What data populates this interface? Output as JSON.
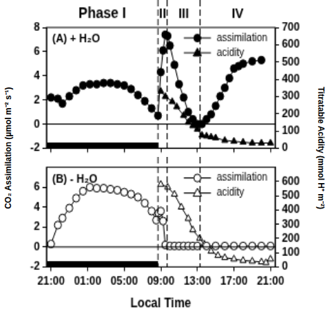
{
  "chart_data": [
    {
      "type": "line",
      "title": "(A) + H₂O",
      "ylabel": "CO₂ Assimilation (µmol m⁻² s⁻¹)",
      "y2label": "Titratable Acidity (mmol H⁺ m⁻²)",
      "phases": [
        {
          "label": "Phase I",
          "start": 20.5,
          "end": 32.7
        },
        {
          "label": "II",
          "start": 32.7,
          "end": 33.7
        },
        {
          "label": "III",
          "start": 33.7,
          "end": 37.3
        },
        {
          "label": "IV",
          "start": 37.3,
          "end": 45.5
        }
      ],
      "dark_period": [
        20.5,
        32.7
      ],
      "hline": 0,
      "xlim": [
        20.5,
        45.5
      ],
      "xticks": [
        {
          "value": 21,
          "label": "21:00"
        },
        {
          "value": 25,
          "label": "01:00"
        },
        {
          "value": 29,
          "label": "05:00"
        },
        {
          "value": 33,
          "label": "09:00"
        },
        {
          "value": 37,
          "label": "13:00"
        },
        {
          "value": 41,
          "label": "17:00"
        },
        {
          "value": 45,
          "label": "21:00"
        }
      ],
      "ylim": [
        -2,
        8
      ],
      "yticks": [
        -2,
        0,
        2,
        4,
        6,
        8
      ],
      "y2lim": [
        0,
        700
      ],
      "y2ticks": [
        0,
        100,
        200,
        300,
        400,
        500,
        600,
        700
      ],
      "grid": false,
      "legend": "upper right",
      "tick_labels": "y",
      "series": [
        {
          "name": "assimilation",
          "color": "#000000",
          "marker": "circle",
          "line_style": "solid",
          "x": [
            21.0,
            21.75,
            22.25,
            23.0,
            23.75,
            24.5,
            25.25,
            26.0,
            26.75,
            27.5,
            28.25,
            29.0,
            29.75,
            30.5,
            31.25,
            32.0,
            32.7,
            33.0,
            33.25,
            33.5,
            33.75,
            34.0,
            34.5,
            35.0,
            35.5,
            36.0,
            36.5,
            37.0,
            37.5,
            38.0,
            38.5,
            39.0,
            39.5,
            40.0,
            40.5,
            41.0,
            41.5,
            42.0,
            43.0,
            44.0
          ],
          "values": [
            2.2,
            2.1,
            1.7,
            2.3,
            2.8,
            3.2,
            3.3,
            3.3,
            3.4,
            3.4,
            3.3,
            3.2,
            2.9,
            2.4,
            1.9,
            1.3,
            0.7,
            4.3,
            6.1,
            7.4,
            7.3,
            6.5,
            4.9,
            3.3,
            2.2,
            1.0,
            0.4,
            0.0,
            0.0,
            0.4,
            0.8,
            1.5,
            2.3,
            3.0,
            3.8,
            4.6,
            4.8,
            5.0,
            5.2,
            5.3
          ]
        },
        {
          "name": "acidity",
          "color": "#000000",
          "marker": "triangle",
          "line_style": "solid",
          "axis": "y2",
          "x": [
            33.0,
            33.5,
            34.25,
            34.75,
            35.5,
            36.0,
            36.5,
            37.0,
            37.5,
            38.0,
            38.5,
            39.0,
            40.0,
            41.0,
            42.0,
            43.0,
            44.0,
            45.0
          ],
          "values": [
            330,
            300,
            270,
            240,
            190,
            150,
            130,
            110,
            75,
            70,
            65,
            60,
            45,
            40,
            35,
            30,
            30,
            30
          ]
        }
      ]
    },
    {
      "type": "line",
      "title": "(B) - H₂O",
      "xlabel": "Local Time",
      "dark_period": [
        20.5,
        32.7
      ],
      "hline": 0,
      "xlim": [
        20.5,
        45.5
      ],
      "xticks": [
        {
          "value": 21,
          "label": "21:00"
        },
        {
          "value": 25,
          "label": "01:00"
        },
        {
          "value": 29,
          "label": "05:00"
        },
        {
          "value": 33,
          "label": "09:00"
        },
        {
          "value": 37,
          "label": "13:00"
        },
        {
          "value": 41,
          "label": "17:00"
        },
        {
          "value": 45,
          "label": "21:00"
        }
      ],
      "ylim": [
        -2,
        8
      ],
      "yticks": [
        -2,
        0,
        2,
        4,
        6
      ],
      "y2lim": [
        0,
        700
      ],
      "y2ticks": [
        0,
        100,
        200,
        300,
        400,
        500,
        600
      ],
      "grid": false,
      "legend": "upper right",
      "series": [
        {
          "name": "assimilation",
          "color": "#000000",
          "marker": "open_circle",
          "line_style": "solid",
          "x": [
            21.0,
            21.75,
            22.25,
            23.0,
            23.75,
            24.5,
            25.25,
            26.0,
            26.75,
            27.5,
            28.25,
            29.0,
            29.75,
            30.5,
            31.25,
            32.0,
            32.5,
            32.75,
            33.0,
            33.25,
            33.5,
            34.0,
            34.5,
            35.0,
            35.5,
            36.0,
            36.5,
            37.0,
            38.0,
            39.0,
            40.0,
            41.0,
            42.0,
            43.0,
            44.0,
            45.0
          ],
          "values": [
            0.3,
            2.2,
            2.9,
            3.9,
            4.9,
            5.6,
            6.0,
            5.9,
            5.9,
            5.8,
            5.7,
            5.5,
            5.3,
            5.0,
            4.4,
            3.6,
            2.7,
            3.4,
            3.6,
            2.6,
            0.2,
            0.1,
            0.1,
            0.1,
            0.1,
            0.1,
            0.1,
            0.1,
            0.1,
            0.1,
            0.1,
            0.1,
            0.1,
            0.1,
            0.1,
            0.1
          ]
        },
        {
          "name": "acidity",
          "color": "#000000",
          "marker": "open_triangle",
          "line_style": "solid",
          "axis": "y2",
          "x": [
            33.0,
            33.75,
            34.5,
            35.25,
            36.0,
            36.5,
            37.25,
            37.75,
            38.5,
            39.25,
            40.0,
            41.0,
            42.0,
            43.0,
            44.0,
            44.5,
            45.0
          ],
          "values": [
            580,
            560,
            510,
            420,
            340,
            260,
            200,
            160,
            110,
            80,
            65,
            55,
            45,
            40,
            35,
            30,
            55
          ]
        }
      ]
    }
  ]
}
